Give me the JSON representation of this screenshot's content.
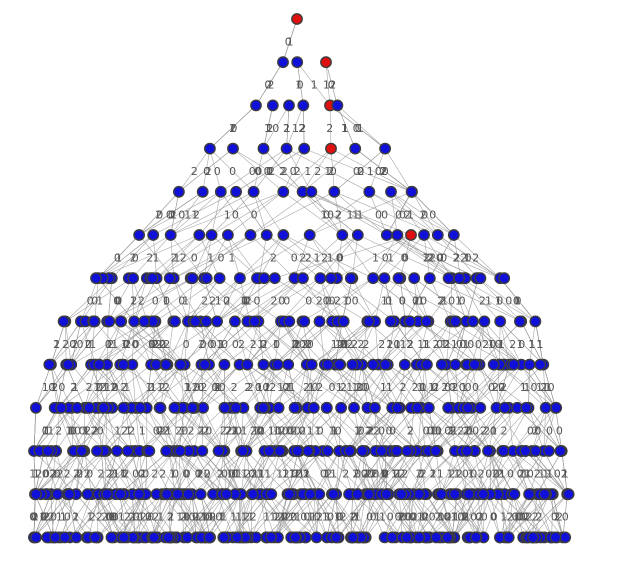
{
  "colors": {
    "background": "#ffffff",
    "edge": "#9a9a9a",
    "edge_label": "#555555",
    "node_default": "#1010d8",
    "node_highlight": "#e01010",
    "node_stroke": "#3c3c3c"
  },
  "legend": [],
  "graph": {
    "type": "layered-graph",
    "levels": 13,
    "root_level_nodes": 1,
    "highlighted_path_levels": [
      0,
      1,
      2,
      3,
      4,
      5
    ],
    "edge_label_values": [
      "0",
      "1",
      "2"
    ]
  }
}
